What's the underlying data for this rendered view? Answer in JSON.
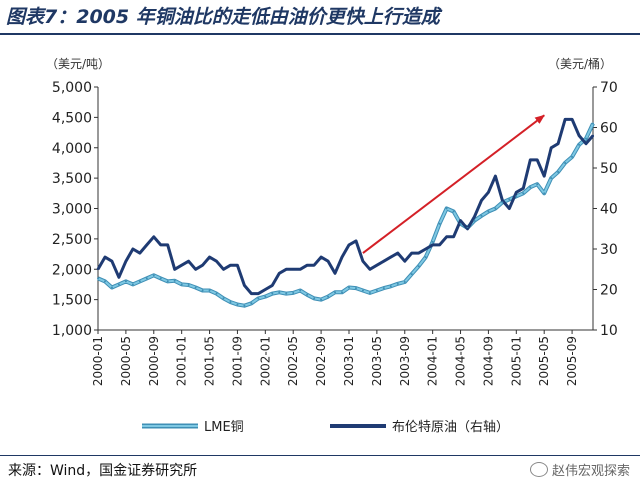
{
  "title": "图表7：2005 年铜油比的走低由油价更快上行造成",
  "source": "来源：Wind，国金证券研究所",
  "watermark": "赵伟宏观探索",
  "watermark_icon": "wechat-icon",
  "colors": {
    "title": "#1f3864",
    "lme_copper": "#7ec8e3",
    "lme_copper_edge": "#3f8fb5",
    "brent": "#1f3b73",
    "arrow": "#d42027"
  },
  "chart_data": {
    "type": "line",
    "left_unit": "（美元/吨）",
    "right_unit": "（美元/桶）",
    "x": [
      "2000-01",
      "2000-02",
      "2000-03",
      "2000-04",
      "2000-05",
      "2000-06",
      "2000-07",
      "2000-08",
      "2000-09",
      "2000-10",
      "2000-11",
      "2000-12",
      "2001-01",
      "2001-02",
      "2001-03",
      "2001-04",
      "2001-05",
      "2001-06",
      "2001-07",
      "2001-08",
      "2001-09",
      "2001-10",
      "2001-11",
      "2001-12",
      "2002-01",
      "2002-02",
      "2002-03",
      "2002-04",
      "2002-05",
      "2002-06",
      "2002-07",
      "2002-08",
      "2002-09",
      "2002-10",
      "2002-11",
      "2002-12",
      "2003-01",
      "2003-02",
      "2003-03",
      "2003-04",
      "2003-05",
      "2003-06",
      "2003-07",
      "2003-08",
      "2003-09",
      "2003-10",
      "2003-11",
      "2003-12",
      "2004-01",
      "2004-02",
      "2004-03",
      "2004-04",
      "2004-05",
      "2004-06",
      "2004-07",
      "2004-08",
      "2004-09",
      "2004-10",
      "2004-11",
      "2004-12",
      "2005-01",
      "2005-02",
      "2005-03",
      "2005-04",
      "2005-05",
      "2005-06",
      "2005-07",
      "2005-08",
      "2005-09",
      "2005-10",
      "2005-11",
      "2005-12"
    ],
    "x_tick_labels": [
      "2000-01",
      "2000-05",
      "2000-09",
      "2001-01",
      "2001-05",
      "2001-09",
      "2002-01",
      "2002-05",
      "2002-09",
      "2003-01",
      "2003-05",
      "2003-09",
      "2004-01",
      "2004-05",
      "2004-09",
      "2005-01",
      "2005-05",
      "2005-09"
    ],
    "y_left": {
      "min": 1000,
      "max": 5000,
      "ticks": [
        "1,000",
        "1,500",
        "2,000",
        "2,500",
        "3,000",
        "3,500",
        "4,000",
        "4,500",
        "5,000"
      ]
    },
    "y_right": {
      "min": 10,
      "max": 70,
      "ticks": [
        "10",
        "20",
        "30",
        "40",
        "50",
        "60",
        "70"
      ]
    },
    "series": [
      {
        "name": "LME铜",
        "axis": "left",
        "values": [
          1850,
          1800,
          1700,
          1750,
          1800,
          1750,
          1800,
          1850,
          1900,
          1850,
          1800,
          1810,
          1750,
          1740,
          1700,
          1650,
          1650,
          1600,
          1520,
          1460,
          1420,
          1400,
          1440,
          1520,
          1550,
          1600,
          1620,
          1600,
          1610,
          1650,
          1580,
          1520,
          1500,
          1550,
          1620,
          1620,
          1700,
          1690,
          1650,
          1610,
          1650,
          1690,
          1720,
          1760,
          1790,
          1920,
          2050,
          2200,
          2450,
          2750,
          3000,
          2950,
          2750,
          2680,
          2800,
          2880,
          2950,
          3000,
          3100,
          3150,
          3200,
          3250,
          3350,
          3400,
          3250,
          3500,
          3600,
          3750,
          3850,
          4050,
          4150,
          4400
        ]
      },
      {
        "name": "布伦特原油（右轴）",
        "axis": "right",
        "values": [
          25,
          28,
          27,
          23,
          27,
          30,
          29,
          31,
          33,
          31,
          31,
          25,
          26,
          27,
          25,
          26,
          28,
          27,
          25,
          26,
          26,
          21,
          19,
          19,
          20,
          21,
          24,
          25,
          25,
          25,
          26,
          26,
          28,
          27,
          24,
          28,
          31,
          32,
          27,
          25,
          26,
          27,
          28,
          29,
          27,
          29,
          29,
          30,
          31,
          31,
          33,
          33,
          37,
          35,
          38,
          42,
          44,
          48,
          42,
          40,
          44,
          45,
          52,
          52,
          48,
          55,
          56,
          62,
          62,
          58,
          56,
          58
        ]
      }
    ]
  }
}
